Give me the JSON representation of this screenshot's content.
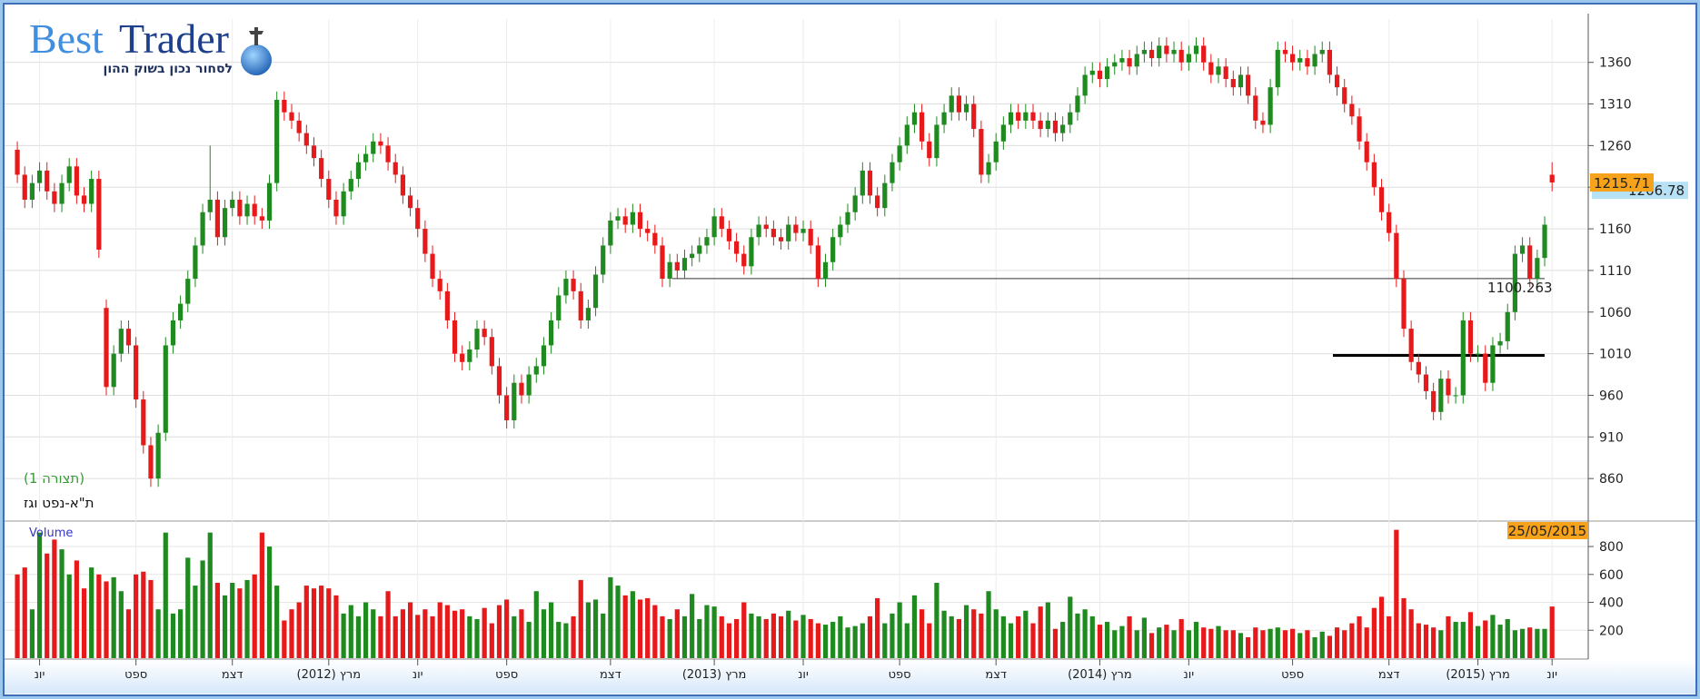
{
  "header": {
    "brand_first": "Best",
    "brand_second": "Trader",
    "tagline": "לסחור נכון בשוק ההון"
  },
  "chart_data": {
    "type": "candlestick",
    "title": "ת\"א-נפט וגז",
    "subtitle": "(תצורה 1)",
    "up_color": "#1f8a1f",
    "down_color": "#e8191a",
    "ylim": [
      810,
      1412
    ],
    "yticks": [
      860,
      910,
      960,
      1010,
      1060,
      1110,
      1160,
      1210,
      1260,
      1310,
      1360
    ],
    "grid": true,
    "categories": [
      null,
      null,
      null,
      "יונ",
      null,
      null,
      null,
      null,
      null,
      null,
      null,
      null,
      null,
      null,
      null,
      null,
      "ספט",
      null,
      null,
      null,
      null,
      null,
      null,
      null,
      null,
      null,
      null,
      null,
      null,
      "דצמ",
      null,
      null,
      null,
      null,
      null,
      null,
      null,
      null,
      null,
      null,
      null,
      null,
      "(2012) מרץ",
      null,
      null,
      null,
      null,
      null,
      null,
      null,
      null,
      null,
      null,
      null,
      "יונ",
      null,
      null,
      null,
      null,
      null,
      null,
      null,
      null,
      null,
      null,
      null,
      "ספט",
      null,
      null,
      null,
      null,
      null,
      null,
      null,
      null,
      null,
      null,
      null,
      null,
      null,
      "דצמ",
      null,
      null,
      null,
      null,
      null,
      null,
      null,
      null,
      null,
      null,
      null,
      null,
      null,
      "(2013) מרץ",
      null,
      null,
      null,
      null,
      null,
      null,
      null,
      null,
      null,
      null,
      null,
      "יונ",
      null,
      null,
      null,
      null,
      null,
      null,
      null,
      null,
      null,
      null,
      null,
      null,
      "ספט",
      null,
      null,
      null,
      null,
      null,
      null,
      null,
      null,
      null,
      null,
      null,
      null,
      "דצמ",
      null,
      null,
      null,
      null,
      null,
      null,
      null,
      null,
      null,
      null,
      null,
      null,
      null,
      "(2014) מרץ",
      null,
      null,
      null,
      null,
      null,
      null,
      null,
      null,
      null,
      null,
      null,
      "יונ",
      null,
      null,
      null,
      null,
      null,
      null,
      null,
      null,
      null,
      null,
      null,
      null,
      null,
      "ספט",
      null,
      null,
      null,
      null,
      null,
      null,
      null,
      null,
      null,
      null,
      null,
      null,
      "דצמ",
      null,
      null,
      null,
      null,
      null,
      null,
      null,
      null,
      null,
      null,
      null,
      "(2015) מרץ",
      null,
      null,
      null,
      null,
      null,
      null,
      null,
      null,
      null,
      "יונ"
    ],
    "open": [
      1255,
      1225,
      1195,
      1215,
      1230,
      1205,
      1190,
      1215,
      1235,
      1200,
      1190,
      1220,
      1065,
      970,
      1010,
      1040,
      1020,
      955,
      900,
      860,
      915,
      1020,
      1050,
      1070,
      1100,
      1140,
      1180,
      1195,
      1150,
      1185,
      1195,
      1175,
      1190,
      1175,
      1170,
      1215,
      1315,
      1300,
      1290,
      1275,
      1260,
      1245,
      1220,
      1195,
      1175,
      1205,
      1220,
      1240,
      1250,
      1265,
      1260,
      1240,
      1225,
      1200,
      1185,
      1160,
      1130,
      1100,
      1085,
      1050,
      1010,
      1000,
      1015,
      1040,
      1030,
      995,
      960,
      930,
      975,
      960,
      985,
      995,
      1020,
      1050,
      1080,
      1100,
      1085,
      1050,
      1065,
      1105,
      1140,
      1170,
      1175,
      1165,
      1180,
      1160,
      1155,
      1140,
      1100,
      1120,
      1110,
      1125,
      1130,
      1140,
      1150,
      1175,
      1160,
      1145,
      1130,
      1115,
      1150,
      1165,
      1160,
      1150,
      1145,
      1165,
      1155,
      1160,
      1140,
      1100,
      1120,
      1150,
      1165,
      1180,
      1200,
      1230,
      1200,
      1185,
      1215,
      1240,
      1260,
      1285,
      1300,
      1265,
      1245,
      1285,
      1300,
      1320,
      1300,
      1310,
      1280,
      1225,
      1240,
      1265,
      1285,
      1300,
      1290,
      1300,
      1290,
      1280,
      1290,
      1275,
      1285,
      1300,
      1320,
      1345,
      1350,
      1340,
      1355,
      1360,
      1365,
      1355,
      1370,
      1375,
      1365,
      1380,
      1370,
      1375,
      1360,
      1370,
      1380,
      1360,
      1345,
      1355,
      1340,
      1330,
      1345,
      1320,
      1290,
      1285,
      1330,
      1375,
      1370,
      1360,
      1365,
      1355,
      1370,
      1375,
      1345,
      1330,
      1310,
      1295,
      1265,
      1240,
      1210,
      1180,
      1155,
      1100,
      1040,
      1000,
      985,
      965,
      940,
      980,
      960,
      960,
      1050,
      1010,
      1010,
      975,
      1020,
      1025,
      1060,
      1130,
      1140,
      1100,
      1125,
      1225
    ],
    "high": [
      1265,
      1235,
      1225,
      1240,
      1240,
      1215,
      1225,
      1245,
      1245,
      1210,
      1230,
      1230,
      1075,
      1020,
      1050,
      1050,
      1030,
      965,
      910,
      925,
      1030,
      1060,
      1080,
      1110,
      1150,
      1190,
      1260,
      1205,
      1195,
      1205,
      1205,
      1200,
      1200,
      1185,
      1225,
      1325,
      1325,
      1310,
      1300,
      1285,
      1270,
      1255,
      1230,
      1205,
      1215,
      1230,
      1250,
      1260,
      1275,
      1275,
      1270,
      1250,
      1235,
      1210,
      1195,
      1170,
      1140,
      1110,
      1095,
      1060,
      1020,
      1025,
      1050,
      1050,
      1040,
      1005,
      970,
      985,
      985,
      995,
      1005,
      1030,
      1060,
      1090,
      1110,
      1110,
      1095,
      1075,
      1115,
      1150,
      1180,
      1185,
      1185,
      1190,
      1190,
      1170,
      1165,
      1150,
      1130,
      1130,
      1135,
      1140,
      1150,
      1160,
      1185,
      1185,
      1170,
      1155,
      1140,
      1160,
      1175,
      1175,
      1170,
      1160,
      1175,
      1175,
      1170,
      1170,
      1150,
      1130,
      1160,
      1175,
      1190,
      1210,
      1240,
      1240,
      1210,
      1225,
      1250,
      1270,
      1295,
      1310,
      1310,
      1275,
      1295,
      1310,
      1330,
      1330,
      1320,
      1320,
      1290,
      1250,
      1275,
      1295,
      1310,
      1310,
      1310,
      1310,
      1300,
      1300,
      1300,
      1295,
      1310,
      1330,
      1355,
      1360,
      1360,
      1365,
      1370,
      1375,
      1375,
      1380,
      1385,
      1385,
      1390,
      1390,
      1385,
      1385,
      1380,
      1390,
      1390,
      1370,
      1365,
      1365,
      1350,
      1355,
      1355,
      1330,
      1300,
      1340,
      1385,
      1385,
      1380,
      1375,
      1375,
      1380,
      1385,
      1385,
      1355,
      1340,
      1320,
      1305,
      1275,
      1250,
      1220,
      1190,
      1165,
      1110,
      1050,
      1010,
      995,
      975,
      990,
      990,
      970,
      1060,
      1060,
      1020,
      1020,
      1030,
      1035,
      1070,
      1140,
      1150,
      1150,
      1135,
      1175,
      1240
    ],
    "low": [
      1215,
      1185,
      1185,
      1205,
      1195,
      1180,
      1180,
      1205,
      1190,
      1180,
      1180,
      1125,
      960,
      960,
      1000,
      1010,
      945,
      890,
      850,
      850,
      905,
      1010,
      1040,
      1060,
      1090,
      1130,
      1170,
      1140,
      1140,
      1175,
      1165,
      1165,
      1165,
      1160,
      1160,
      1205,
      1290,
      1280,
      1265,
      1250,
      1235,
      1210,
      1185,
      1165,
      1165,
      1195,
      1210,
      1230,
      1240,
      1250,
      1230,
      1215,
      1190,
      1175,
      1150,
      1120,
      1090,
      1075,
      1040,
      1000,
      990,
      990,
      1005,
      1020,
      985,
      950,
      920,
      920,
      950,
      950,
      975,
      985,
      1010,
      1040,
      1070,
      1075,
      1040,
      1040,
      1055,
      1095,
      1130,
      1160,
      1155,
      1155,
      1150,
      1145,
      1130,
      1090,
      1090,
      1100,
      1100,
      1115,
      1120,
      1130,
      1140,
      1150,
      1135,
      1120,
      1105,
      1105,
      1140,
      1150,
      1140,
      1135,
      1135,
      1145,
      1145,
      1130,
      1090,
      1090,
      1110,
      1140,
      1155,
      1170,
      1190,
      1190,
      1175,
      1175,
      1205,
      1230,
      1250,
      1275,
      1255,
      1235,
      1235,
      1275,
      1290,
      1290,
      1290,
      1270,
      1215,
      1215,
      1230,
      1255,
      1275,
      1280,
      1280,
      1280,
      1270,
      1270,
      1265,
      1265,
      1275,
      1290,
      1310,
      1335,
      1330,
      1330,
      1345,
      1350,
      1345,
      1345,
      1360,
      1355,
      1355,
      1360,
      1360,
      1350,
      1350,
      1360,
      1350,
      1335,
      1335,
      1330,
      1320,
      1320,
      1310,
      1280,
      1275,
      1275,
      1320,
      1360,
      1350,
      1350,
      1345,
      1345,
      1360,
      1335,
      1320,
      1300,
      1285,
      1255,
      1230,
      1200,
      1170,
      1145,
      1090,
      1030,
      990,
      975,
      955,
      930,
      930,
      950,
      950,
      950,
      1000,
      1000,
      965,
      965,
      1010,
      1015,
      1050,
      1120,
      1090,
      1090,
      1115,
      1205
    ],
    "close": [
      1225,
      1195,
      1215,
      1230,
      1205,
      1190,
      1215,
      1235,
      1200,
      1190,
      1220,
      1135,
      970,
      1010,
      1040,
      1020,
      955,
      900,
      860,
      915,
      1020,
      1050,
      1070,
      1100,
      1140,
      1180,
      1195,
      1150,
      1185,
      1195,
      1175,
      1190,
      1175,
      1170,
      1215,
      1315,
      1300,
      1290,
      1275,
      1260,
      1245,
      1220,
      1195,
      1175,
      1205,
      1220,
      1240,
      1250,
      1265,
      1260,
      1240,
      1225,
      1200,
      1185,
      1160,
      1130,
      1100,
      1085,
      1050,
      1010,
      1000,
      1015,
      1040,
      1030,
      995,
      960,
      930,
      975,
      960,
      985,
      995,
      1020,
      1050,
      1080,
      1100,
      1085,
      1050,
      1065,
      1105,
      1140,
      1170,
      1175,
      1165,
      1180,
      1160,
      1155,
      1140,
      1100,
      1120,
      1110,
      1125,
      1130,
      1140,
      1150,
      1175,
      1160,
      1145,
      1130,
      1115,
      1150,
      1165,
      1160,
      1150,
      1145,
      1165,
      1155,
      1160,
      1140,
      1100,
      1120,
      1150,
      1165,
      1180,
      1200,
      1230,
      1200,
      1185,
      1215,
      1240,
      1260,
      1285,
      1300,
      1265,
      1245,
      1285,
      1300,
      1320,
      1300,
      1310,
      1280,
      1225,
      1240,
      1265,
      1285,
      1300,
      1290,
      1300,
      1290,
      1280,
      1290,
      1275,
      1285,
      1300,
      1320,
      1345,
      1350,
      1340,
      1355,
      1360,
      1365,
      1355,
      1370,
      1375,
      1365,
      1380,
      1370,
      1375,
      1360,
      1370,
      1380,
      1360,
      1345,
      1355,
      1340,
      1330,
      1345,
      1320,
      1290,
      1285,
      1330,
      1375,
      1370,
      1360,
      1365,
      1355,
      1370,
      1375,
      1345,
      1330,
      1310,
      1295,
      1265,
      1240,
      1210,
      1180,
      1155,
      1100,
      1040,
      1000,
      985,
      965,
      940,
      980,
      960,
      960,
      1050,
      1010,
      1010,
      975,
      1020,
      1025,
      1060,
      1130,
      1140,
      1100,
      1125,
      1165,
      1215.71
    ],
    "reference_price": 1206.78,
    "level_line": 1100.263,
    "support_level": 1008,
    "date_label": "25/05/2015",
    "volume": {
      "label": "Volume",
      "ylim": [
        0,
        976
      ],
      "yticks": [
        200,
        400,
        600,
        800
      ],
      "values": [
        600,
        650,
        350,
        900,
        750,
        850,
        780,
        600,
        700,
        500,
        650,
        600,
        550,
        580,
        480,
        350,
        600,
        620,
        560,
        350,
        900,
        320,
        350,
        720,
        520,
        700,
        900,
        540,
        450,
        540,
        500,
        560,
        600,
        900,
        800,
        520,
        270,
        350,
        400,
        520,
        500,
        520,
        500,
        450,
        320,
        380,
        300,
        400,
        350,
        300,
        480,
        300,
        350,
        400,
        310,
        350,
        300,
        400,
        380,
        340,
        350,
        300,
        280,
        360,
        250,
        380,
        420,
        300,
        350,
        260,
        480,
        350,
        400,
        260,
        250,
        300,
        560,
        400,
        420,
        320,
        580,
        520,
        450,
        480,
        420,
        430,
        380,
        300,
        280,
        350,
        300,
        460,
        280,
        380,
        370,
        300,
        250,
        280,
        400,
        320,
        300,
        280,
        320,
        300,
        340,
        270,
        310,
        280,
        250,
        240,
        260,
        300,
        220,
        230,
        250,
        300,
        430,
        250,
        320,
        400,
        250,
        450,
        350,
        250,
        540,
        340,
        300,
        280,
        380,
        350,
        320,
        480,
        350,
        300,
        250,
        300,
        340,
        250,
        370,
        400,
        210,
        260,
        440,
        320,
        350,
        300,
        240,
        260,
        200,
        230,
        300,
        200,
        290,
        180,
        220,
        240,
        200,
        280,
        200,
        260,
        220,
        210,
        230,
        200,
        200,
        180,
        150,
        220,
        200,
        210,
        220,
        200,
        210,
        180,
        200,
        150,
        190,
        160,
        220,
        200,
        250,
        300,
        220,
        360,
        440,
        300,
        920,
        430,
        350,
        250,
        240,
        220,
        200,
        300,
        260,
        260,
        330,
        230,
        270,
        310,
        240,
        280,
        200,
        210,
        220,
        210,
        210,
        370
      ]
    }
  }
}
